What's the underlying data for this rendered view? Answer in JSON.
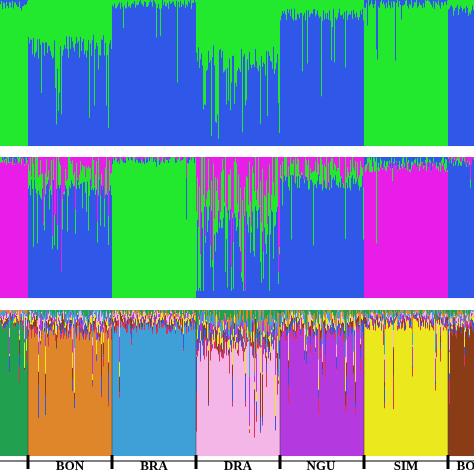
{
  "chart_data": [
    {
      "type": "bar",
      "stacked": "proportional",
      "k": 2,
      "colors": [
        "#22e82e",
        "#2f57e8"
      ],
      "groups": [
        {
          "label": "",
          "dominant": 0,
          "purity": 0.96
        },
        {
          "label": "BON",
          "dominant": 1,
          "purity": 0.68
        },
        {
          "label": "BRA",
          "dominant": 1,
          "purity": 0.97
        },
        {
          "label": "DRA",
          "dominant": 1,
          "purity": 0.6
        },
        {
          "label": "NGU",
          "dominant": 1,
          "purity": 0.9
        },
        {
          "label": "SIM",
          "dominant": 0,
          "purity": 0.97
        },
        {
          "label": "BO",
          "dominant": 1,
          "purity": 0.93
        }
      ],
      "ylim": [
        0,
        1
      ]
    },
    {
      "type": "bar",
      "stacked": "proportional",
      "k": 3,
      "colors": [
        "#e81ee8",
        "#2f57e8",
        "#22e82e"
      ],
      "groups": [
        {
          "label": "",
          "dominant": 0,
          "purity": 0.97
        },
        {
          "label": "BON",
          "dominant": 1,
          "purity": 0.78
        },
        {
          "label": "BRA",
          "dominant": 2,
          "purity": 0.98
        },
        {
          "label": "DRA",
          "dominant": 1,
          "purity": 0.55
        },
        {
          "label": "NGU",
          "dominant": 1,
          "purity": 0.82
        },
        {
          "label": "SIM",
          "dominant": 0,
          "purity": 0.93
        },
        {
          "label": "BO",
          "dominant": 1,
          "purity": 0.96
        }
      ],
      "ylim": [
        0,
        1
      ]
    },
    {
      "type": "bar",
      "stacked": "proportional",
      "k": 9,
      "colors": [
        "#21a050",
        "#de8629",
        "#3ea0d6",
        "#f4b6e6",
        "#b43ae0",
        "#ece81e",
        "#8a3c16",
        "#3a56e0",
        "#e0305a"
      ],
      "groups": [
        {
          "label": "",
          "dominant": 0,
          "purity": 0.9
        },
        {
          "label": "BON",
          "dominant": 1,
          "purity": 0.84
        },
        {
          "label": "BRA",
          "dominant": 2,
          "purity": 0.88
        },
        {
          "label": "DRA",
          "dominant": 3,
          "purity": 0.72
        },
        {
          "label": "NGU",
          "dominant": 4,
          "purity": 0.84
        },
        {
          "label": "SIM",
          "dominant": 5,
          "purity": 0.9
        },
        {
          "label": "BO",
          "dominant": 6,
          "purity": 0.86
        }
      ],
      "ylim": [
        0,
        1
      ]
    }
  ],
  "axis_labels": [
    "BON",
    "BRA",
    "DRA",
    "NGU",
    "SIM",
    "BO"
  ]
}
